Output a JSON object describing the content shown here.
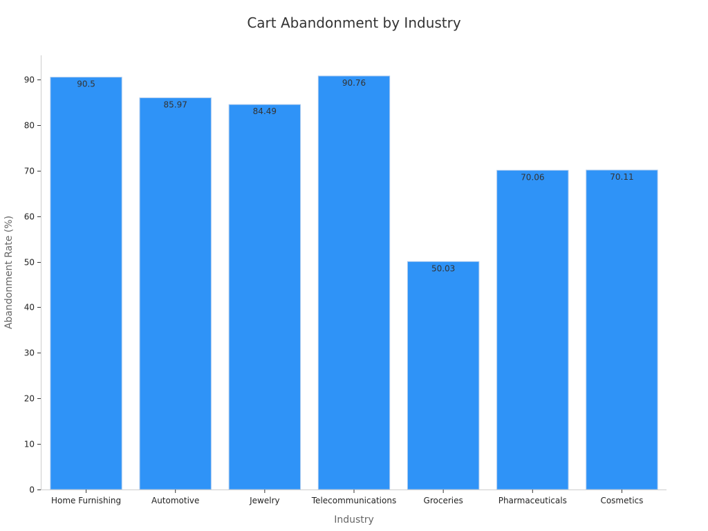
{
  "chart_data": {
    "type": "bar",
    "title": "Cart Abandonment by Industry",
    "xlabel": "Industry",
    "ylabel": "Abandonment Rate (%)",
    "categories": [
      "Home Furnishing",
      "Automotive",
      "Jewelry",
      "Telecommunications",
      "Groceries",
      "Pharmaceuticals",
      "Cosmetics"
    ],
    "values": [
      90.5,
      85.97,
      84.49,
      90.76,
      50.03,
      70.06,
      70.11
    ],
    "data_labels": [
      "90.5",
      "85.97",
      "84.49",
      "90.76",
      "50.03",
      "70.06",
      "70.11"
    ],
    "yticks": [
      0,
      10,
      20,
      30,
      40,
      50,
      60,
      70,
      80,
      90
    ],
    "ylim": [
      0,
      95.3
    ],
    "grid": false,
    "bar_color": "#2f93f7"
  }
}
